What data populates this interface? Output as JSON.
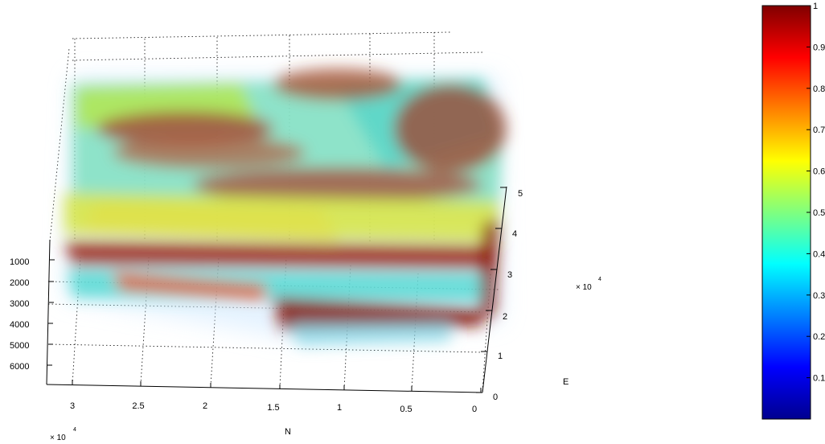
{
  "chart_data": {
    "type": "volume-3d",
    "axes": {
      "N": {
        "label": "N",
        "multiplier": "× 10",
        "multiplier_exp": "4",
        "ticks": [
          "3",
          "2.5",
          "2",
          "1.5",
          "1",
          "0.5",
          "0"
        ]
      },
      "E": {
        "label": "E",
        "multiplier": "× 10",
        "multiplier_exp": "4",
        "ticks": [
          "0",
          "1",
          "2",
          "3",
          "4",
          "5"
        ]
      },
      "depth": {
        "label": "",
        "ticks": [
          "1000",
          "2000",
          "3000",
          "4000",
          "5000",
          "6000"
        ]
      }
    },
    "colorbar": {
      "colormap": "jet",
      "range": [
        0,
        1
      ],
      "ticks": [
        "1",
        "0.9",
        "0.8",
        "0.7",
        "0.6",
        "0.5",
        "0.4",
        "0.3",
        "0.2",
        "0.1"
      ]
    },
    "grid": true
  }
}
